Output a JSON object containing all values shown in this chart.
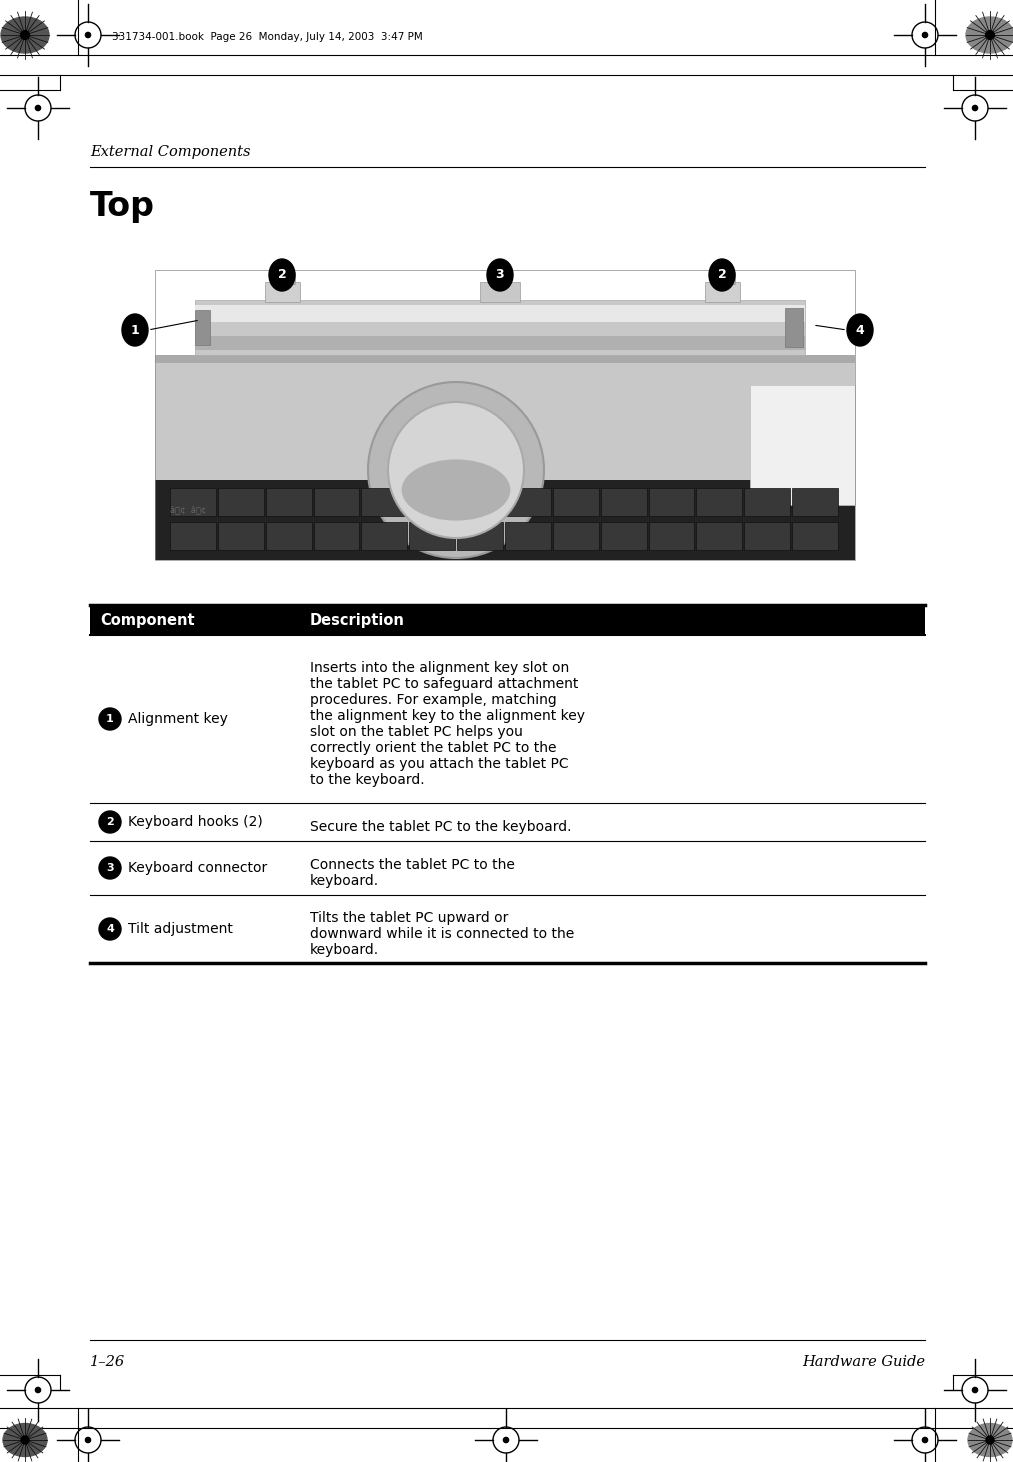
{
  "page_header_text": "331734-001.book  Page 26  Monday, July 14, 2003  3:47 PM",
  "section_label": "External Components",
  "section_title": "Top",
  "footer_left": "1–26",
  "footer_right": "Hardware Guide",
  "bg_color": "#ffffff",
  "table_col1_header": "Component",
  "table_col2_header": "Description",
  "rows": [
    {
      "num": "1",
      "component": "Alignment key",
      "description": "Inserts into the alignment key slot on\nthe tablet PC to safeguard attachment\nprocedures. For example, matching\nthe alignment key to the alignment key\nslot on the tablet PC helps you\ncorrectly orient the tablet PC to the\nkeyboard as you attach the tablet PC\nto the keyboard."
    },
    {
      "num": "2",
      "component": "Keyboard hooks (2)",
      "description": "Secure the tablet PC to the keyboard."
    },
    {
      "num": "3",
      "component": "Keyboard connector",
      "description": "Connects the tablet PC to the\nkeyboard."
    },
    {
      "num": "4",
      "component": "Tilt adjustment",
      "description": "Tilts the tablet PC upward or\ndownward while it is connected to the\nkeyboard."
    }
  ]
}
